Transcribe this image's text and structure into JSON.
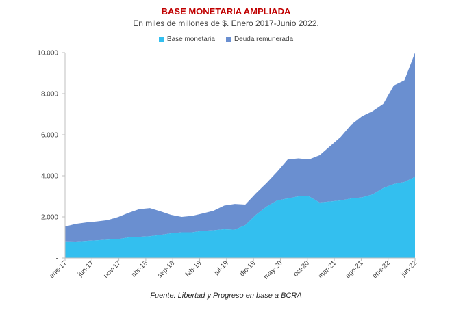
{
  "chart_data": {
    "type": "area",
    "stacked": true,
    "title": "BASE MONETARIA AMPLIADA",
    "subtitle": "En miles de millones de $. Enero 2017-Junio 2022.",
    "source": "Fuente: Libertad y Progreso en base a BCRA",
    "ylim": [
      0,
      10000
    ],
    "y_ticks": [
      "-",
      "2.000",
      "4.000",
      "6.000",
      "8.000",
      "10.000"
    ],
    "x_tick_labels": [
      "ene-17",
      "jun-17",
      "nov-17",
      "abr-18",
      "sep-18",
      "feb-19",
      "jul-19",
      "dic-19",
      "may-20",
      "oct-20",
      "mar-21",
      "ago-21",
      "ene-22",
      "jun-22"
    ],
    "legend_position": "top",
    "gridlines": false,
    "x": [
      "ene-17",
      "mar-17",
      "may-17",
      "jul-17",
      "sep-17",
      "nov-17",
      "ene-18",
      "mar-18",
      "may-18",
      "jul-18",
      "sep-18",
      "nov-18",
      "ene-19",
      "mar-19",
      "may-19",
      "jul-19",
      "sep-19",
      "nov-19",
      "ene-20",
      "mar-20",
      "may-20",
      "jul-20",
      "sep-20",
      "nov-20",
      "ene-21",
      "mar-21",
      "may-21",
      "jul-21",
      "sep-21",
      "nov-21",
      "ene-22",
      "mar-22",
      "may-22",
      "jun-22"
    ],
    "series": [
      {
        "name": "Base monetaria",
        "color": "#33bfef",
        "values": [
          810,
          800,
          830,
          860,
          890,
          920,
          1000,
          1030,
          1060,
          1120,
          1200,
          1250,
          1250,
          1320,
          1350,
          1400,
          1380,
          1600,
          2100,
          2500,
          2800,
          2900,
          3000,
          3000,
          2700,
          2750,
          2800,
          2900,
          2950,
          3100,
          3400,
          3600,
          3700,
          3950
        ]
      },
      {
        "name": "Deuda remunerada",
        "color": "#6a8fd0",
        "values": [
          720,
          860,
          900,
          920,
          950,
          1070,
          1200,
          1350,
          1370,
          1150,
          900,
          750,
          800,
          850,
          950,
          1150,
          1250,
          1000,
          1050,
          1150,
          1400,
          1900,
          1850,
          1800,
          2300,
          2700,
          3100,
          3600,
          3950,
          4050,
          4100,
          4800,
          4950,
          6050
        ]
      }
    ]
  }
}
